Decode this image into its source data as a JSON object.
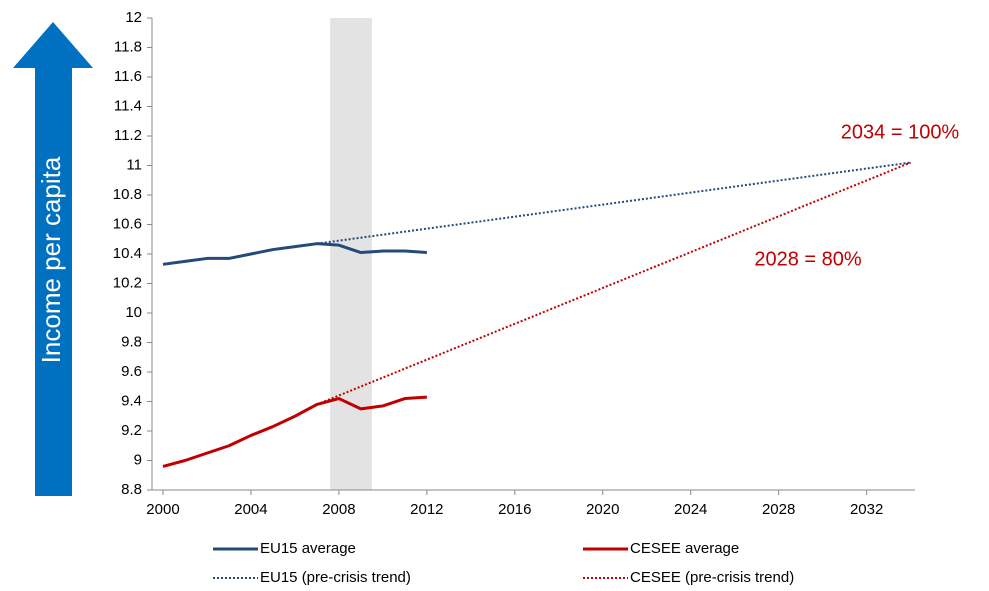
{
  "chart_data": {
    "type": "line",
    "ylabel": "Income per capita",
    "xlim": [
      1999.5,
      2034.2
    ],
    "xticks": [
      2000,
      2004,
      2008,
      2012,
      2016,
      2020,
      2024,
      2028,
      2032
    ],
    "ylim": [
      8.8,
      12
    ],
    "yticks": [
      8.8,
      9,
      9.2,
      9.4,
      9.6,
      9.8,
      10,
      10.2,
      10.4,
      10.6,
      10.8,
      11,
      11.2,
      11.4,
      11.6,
      11.8,
      12
    ],
    "shaded_x": [
      2007.6,
      2009.5
    ],
    "series": [
      {
        "name": "EU15 average",
        "color": "#244a7c",
        "dash": "solid",
        "x": [
          2000,
          2001,
          2002,
          2003,
          2004,
          2005,
          2006,
          2007,
          2008,
          2009,
          2010,
          2011,
          2012
        ],
        "values": [
          10.33,
          10.35,
          10.37,
          10.37,
          10.4,
          10.43,
          10.45,
          10.47,
          10.46,
          10.41,
          10.42,
          10.42,
          10.41
        ]
      },
      {
        "name": "CESEE average",
        "color": "#c00000",
        "dash": "solid",
        "x": [
          2000,
          2001,
          2002,
          2003,
          2004,
          2005,
          2006,
          2007,
          2008,
          2009,
          2010,
          2011,
          2012
        ],
        "values": [
          8.96,
          9.0,
          9.05,
          9.1,
          9.17,
          9.23,
          9.3,
          9.38,
          9.42,
          9.35,
          9.37,
          9.42,
          9.43
        ]
      },
      {
        "name": "EU15 (pre-crisis trend)",
        "color": "#244a7c",
        "dash": "dotted",
        "x": [
          2007,
          2034
        ],
        "values": [
          10.47,
          11.02
        ]
      },
      {
        "name": "CESEE (pre-crisis trend)",
        "color": "#c00000",
        "dash": "dotted",
        "x": [
          2007,
          2034
        ],
        "values": [
          9.38,
          11.02
        ]
      }
    ],
    "annotations": [
      {
        "text": "2034 = 100%",
        "color": "#c00000"
      },
      {
        "text": "2028 = 80%",
        "color": "#c00000"
      }
    ]
  }
}
